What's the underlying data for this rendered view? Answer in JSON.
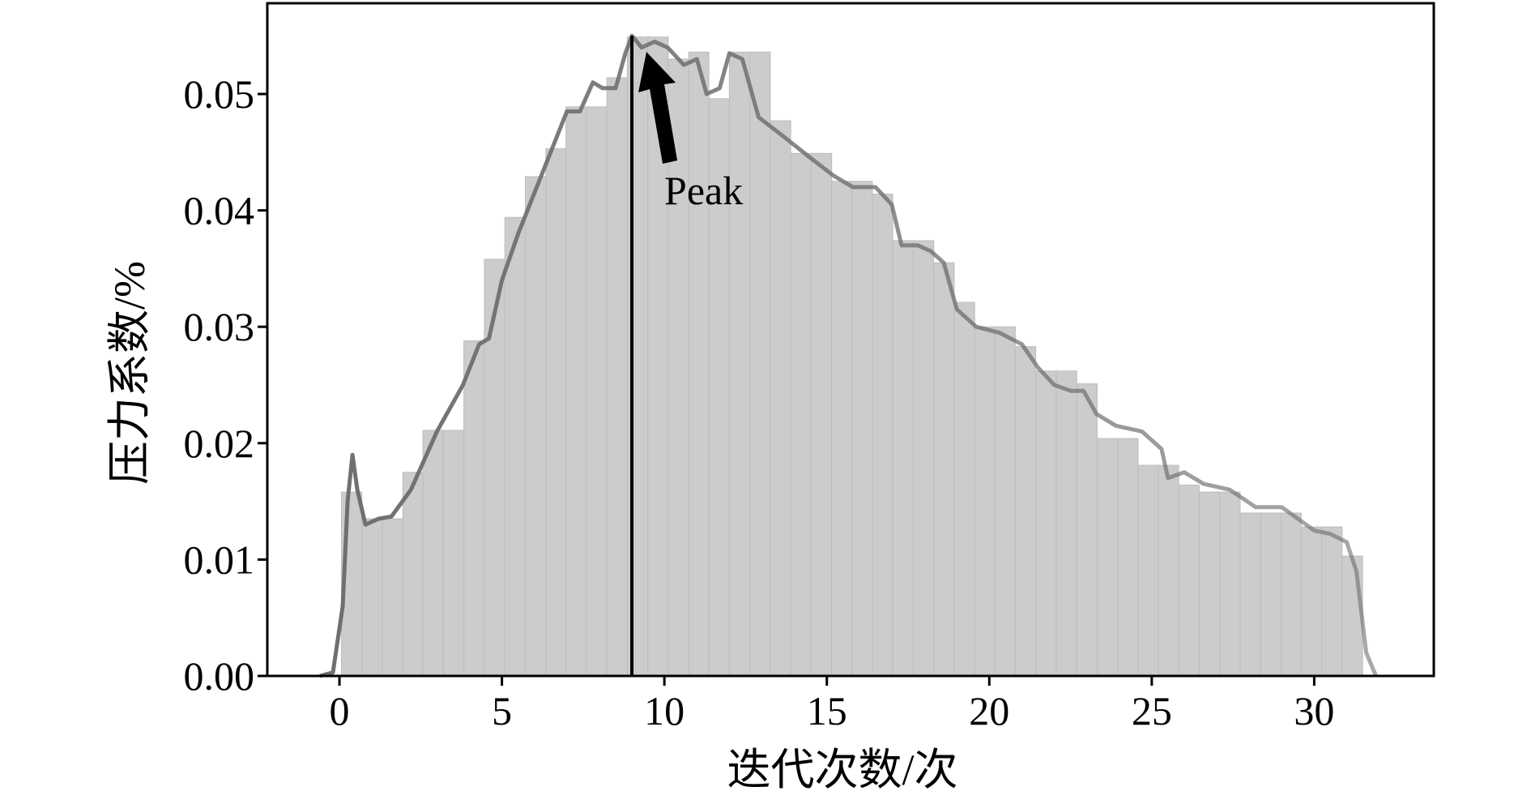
{
  "chart_data": {
    "type": "histogram",
    "xlabel": "迭代次数/次",
    "ylabel": "压力系数/%",
    "bins": [
      0.06,
      0.69,
      1.32,
      1.95,
      2.57,
      3.2,
      3.83,
      4.46,
      5.09,
      5.72,
      6.35,
      6.97,
      7.6,
      8.23,
      8.86,
      9.49,
      10.12,
      10.75,
      11.37,
      12.0,
      12.63,
      13.26,
      13.89,
      14.52,
      15.15,
      15.77,
      16.4,
      17.03,
      17.66,
      18.29,
      18.92,
      19.55,
      20.18,
      20.8,
      21.43,
      22.06,
      22.69,
      23.32,
      23.95,
      24.58,
      25.2,
      25.83,
      26.46,
      27.09,
      27.72,
      28.35,
      28.98,
      29.6,
      30.23,
      30.86,
      31.49
    ],
    "values": [
      0.0158,
      0.0135,
      0.0135,
      0.0175,
      0.0211,
      0.0211,
      0.0288,
      0.0358,
      0.0394,
      0.0429,
      0.0453,
      0.0489,
      0.0489,
      0.0514,
      0.0549,
      0.0549,
      0.053,
      0.0536,
      0.0496,
      0.0536,
      0.0536,
      0.0477,
      0.0449,
      0.0449,
      0.0425,
      0.0425,
      0.0414,
      0.0374,
      0.0374,
      0.0355,
      0.0321,
      0.03,
      0.03,
      0.0283,
      0.0262,
      0.0262,
      0.0251,
      0.0204,
      0.0204,
      0.0181,
      0.0181,
      0.0164,
      0.0158,
      0.0158,
      0.014,
      0.014,
      0.014,
      0.0128,
      0.0128,
      0.0103
    ],
    "color": "#cccccc",
    "kde": {
      "color": "#6e6e6e",
      "x": [
        -0.6,
        -0.2,
        0.1,
        0.25,
        0.4,
        0.55,
        0.8,
        1.2,
        1.6,
        2.2,
        3,
        3.8,
        4.3,
        4.6,
        5,
        5.5,
        6,
        6.5,
        7,
        7.4,
        7.8,
        8.1,
        8.5,
        8.8,
        9,
        9.3,
        9.7,
        10.1,
        10.6,
        11,
        11.3,
        11.7,
        12,
        12.4,
        12.9,
        13.6,
        14.5,
        15.2,
        15.8,
        16.5,
        17,
        17.3,
        17.8,
        18.2,
        18.6,
        19,
        19.6,
        20.3,
        21,
        21.5,
        22,
        22.5,
        22.9,
        23.3,
        23.9,
        24.7,
        25.3,
        25.5,
        26,
        26.6,
        27.4,
        28.2,
        29,
        29.5,
        30,
        30.5,
        31,
        31.3,
        31.6,
        31.9
      ],
      "y": [
        0,
        0.0003,
        0.006,
        0.015,
        0.019,
        0.016,
        0.013,
        0.0135,
        0.0137,
        0.016,
        0.021,
        0.025,
        0.0285,
        0.029,
        0.034,
        0.038,
        0.0415,
        0.045,
        0.0485,
        0.0485,
        0.051,
        0.0505,
        0.0505,
        0.0535,
        0.055,
        0.054,
        0.0545,
        0.054,
        0.0525,
        0.053,
        0.05,
        0.0505,
        0.0535,
        0.053,
        0.048,
        0.0465,
        0.0445,
        0.043,
        0.042,
        0.042,
        0.0405,
        0.037,
        0.037,
        0.0365,
        0.0355,
        0.0315,
        0.03,
        0.0295,
        0.0285,
        0.0265,
        0.025,
        0.0245,
        0.0245,
        0.0225,
        0.0215,
        0.021,
        0.0195,
        0.017,
        0.0175,
        0.0165,
        0.016,
        0.0145,
        0.0145,
        0.0135,
        0.0125,
        0.0122,
        0.0115,
        0.009,
        0.002,
        0
      ]
    },
    "peak": {
      "x": 9,
      "label": "Peak"
    },
    "xlim": [
      -2.22,
      33.68
    ],
    "ylim": [
      0,
      0.0578
    ],
    "xticks": [
      0,
      5,
      10,
      15,
      20,
      25,
      30
    ],
    "yticks": [
      {
        "value": 0,
        "label": "0.00"
      },
      {
        "value": 0.01,
        "label": "0.01"
      },
      {
        "value": 0.02,
        "label": "0.02"
      },
      {
        "value": 0.03,
        "label": "0.03"
      },
      {
        "value": 0.04,
        "label": "0.04"
      },
      {
        "value": 0.05,
        "label": "0.05"
      }
    ]
  }
}
